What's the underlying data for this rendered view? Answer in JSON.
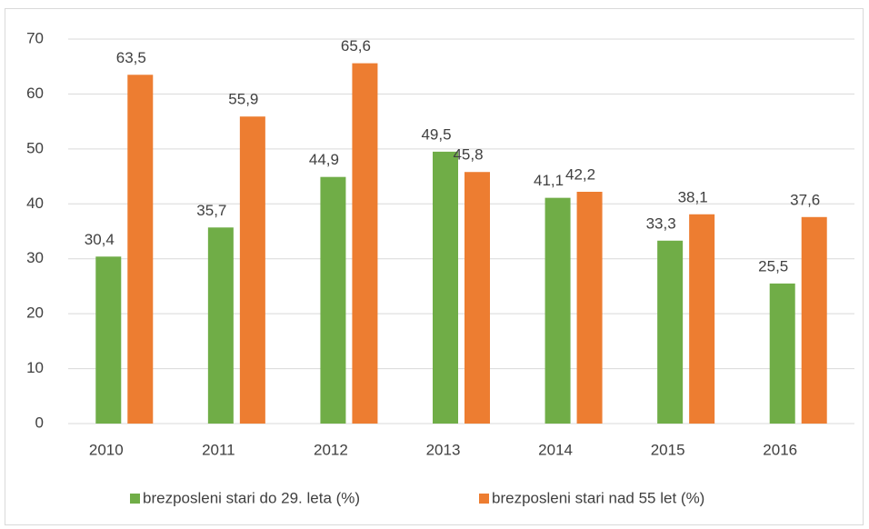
{
  "chart_data": {
    "type": "bar",
    "categories": [
      "2010",
      "2011",
      "2012",
      "2013",
      "2014",
      "2015",
      "2016"
    ],
    "series": [
      {
        "name": "brezposleni stari do 29. leta (%)",
        "color": "#70ad47",
        "values": [
          30.4,
          35.7,
          44.9,
          49.5,
          41.1,
          33.3,
          25.5
        ],
        "value_labels": [
          "30,4",
          "35,7",
          "44,9",
          "49,5",
          "41,1",
          "33,3",
          "25,5"
        ]
      },
      {
        "name": "brezposleni stari nad 55 let  (%)",
        "color": "#ed7d31",
        "values": [
          63.5,
          55.9,
          65.6,
          45.8,
          42.2,
          38.1,
          37.6
        ],
        "value_labels": [
          "63,5",
          "55,9",
          "65,6",
          "45,8",
          "42,2",
          "38,1",
          "37,6"
        ]
      }
    ],
    "ylim": [
      0,
      70
    ],
    "yticks": [
      0,
      10,
      20,
      30,
      40,
      50,
      60,
      70
    ],
    "grid": true,
    "legend": "bottom"
  }
}
